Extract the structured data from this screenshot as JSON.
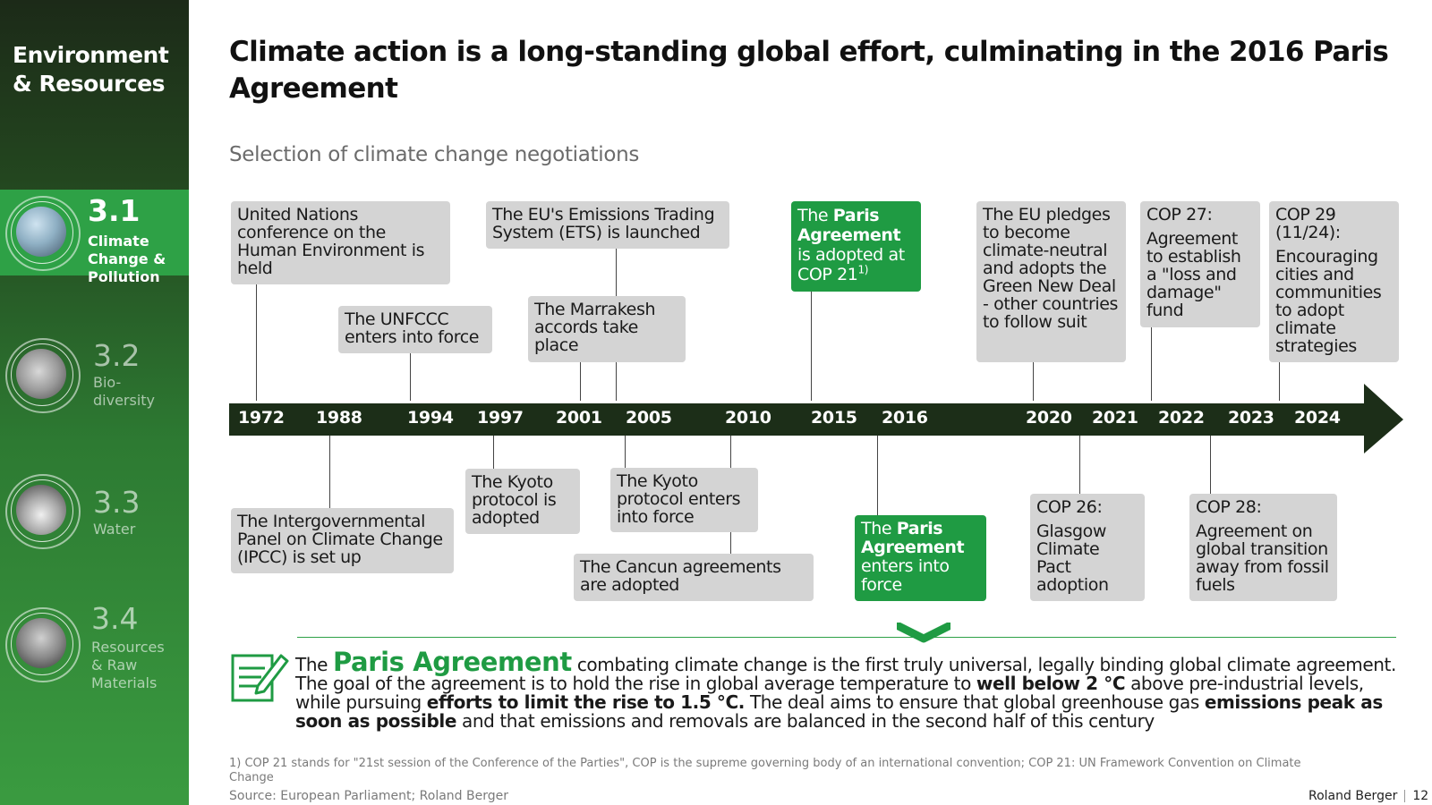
{
  "sidebar": {
    "title_line1": "Environment",
    "title_line2": "& Resources",
    "items": [
      {
        "num": "3.1",
        "label_lines": [
          "Climate",
          "Change &",
          "Pollution"
        ]
      },
      {
        "num": "3.2",
        "label_lines": [
          "Bio-",
          "diversity"
        ]
      },
      {
        "num": "3.3",
        "label_lines": [
          "Water"
        ]
      },
      {
        "num": "3.4",
        "label_lines": [
          "Resources",
          "& Raw",
          "Materials"
        ]
      }
    ]
  },
  "title": "Climate action is a long-standing global effort, culminating in the 2016 Paris Agreement",
  "subtitle": "Selection of climate change negotiations",
  "timeline": {
    "years": [
      "1972",
      "1988",
      "1994",
      "1997",
      "2001",
      "2005",
      "2010",
      "2015",
      "2016",
      "2020",
      "2021",
      "2022",
      "2023",
      "2024"
    ],
    "top_events": [
      "United Nations conference on the Human Environment is held",
      "The UNFCCC enters into force",
      "The EU's Emissions Trading System (ETS) is launched",
      "The Marrakesh accords take place",
      "The EU pledges to become climate-neutral and adopts the Green New Deal - other countries to follow suit",
      "COP 27:",
      "Agreement to establish a \"loss and damage\" fund",
      "COP 29 (11/24):",
      "Encouraging cities and communities to adopt climate strategies"
    ],
    "paris_2015": {
      "pre": "The ",
      "bold": "Paris Agreement",
      "post": "is adopted at COP 21",
      "sup": "1)"
    },
    "bottom_events": [
      "The Intergovernmental Panel on Climate Change (IPCC) is set up",
      "The Kyoto protocol is adopted",
      "The Kyoto protocol enters into force",
      "The Cancun agreements are adopted",
      "COP 26:",
      "Glasgow Climate Pact adoption",
      "COP 28:",
      "Agreement on global transition away from fossil fuels"
    ],
    "paris_2016": {
      "pre": "The ",
      "bold": "Paris Agreement",
      "post": "enters into force"
    }
  },
  "paris_summary": {
    "the": "The",
    "heading": "Paris Agreement",
    "s1": " combating climate change is the first truly universal, legally binding global climate agreement. The goal of the agreement is to hold the rise in global average temperature to ",
    "b1": "well below 2 °C",
    "s2": " above pre-industrial levels, while pursuing ",
    "b2": "efforts to limit the rise to 1.5 °C.",
    "s3": " The deal aims to ensure that global greenhouse gas ",
    "b3": "emissions peak as soon as possible",
    "s4": " and that emissions and removals are balanced in the second half of this century"
  },
  "footnote": "1) COP 21 stands for \"21st session of the Conference of the Parties\", COP is the supreme governing body of an international convention; COP 21: UN Framework Convention on Climate Change",
  "source": "Source: European Parliament; Roland Berger",
  "brand": "Roland Berger",
  "page_number": "12",
  "colors": {
    "green": "#1f9b43",
    "dark_arrow": "#1c2e18",
    "box_gray": "#d4d4d4"
  }
}
